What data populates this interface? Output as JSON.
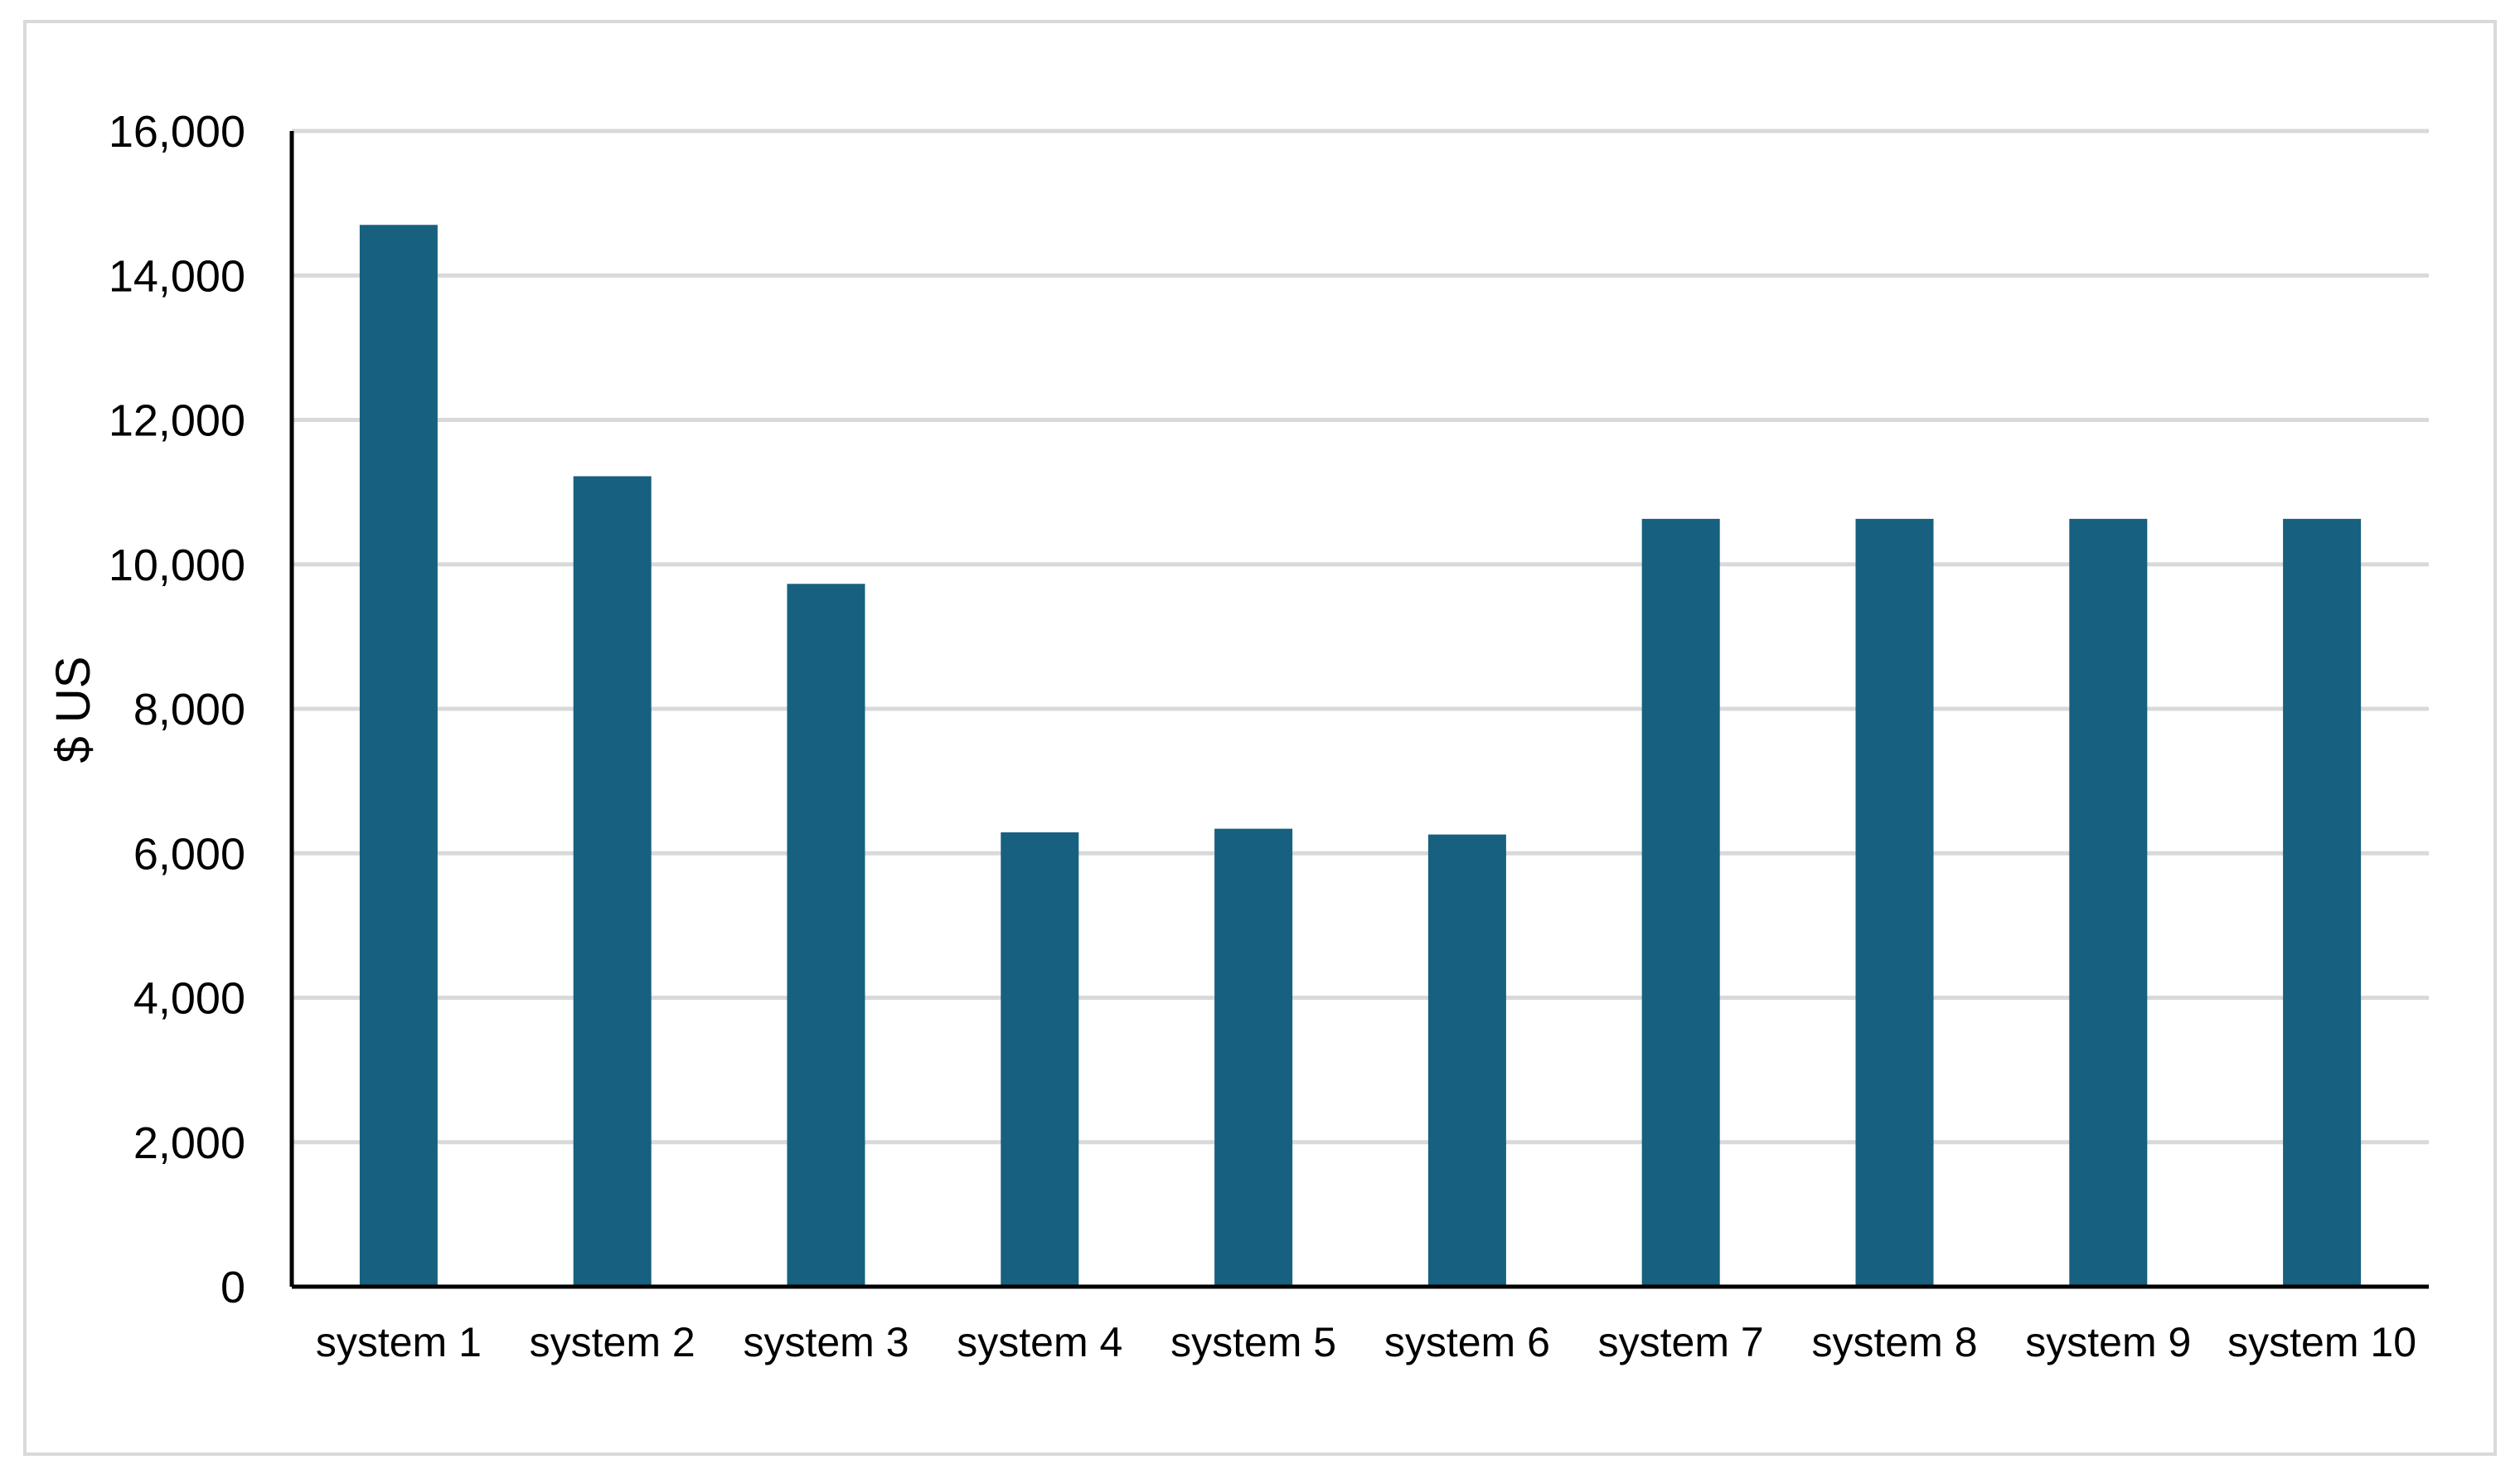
{
  "chart_data": {
    "type": "bar",
    "title": "",
    "xlabel": "",
    "ylabel": "$ US",
    "categories": [
      "system 1",
      "system 2",
      "system 3",
      "system 4",
      "system 5",
      "system 6",
      "system 7",
      "system 8",
      "system 9",
      "system 10"
    ],
    "values": [
      14700,
      11220,
      9730,
      6290,
      6340,
      6260,
      10630,
      10630,
      10630,
      10630
    ],
    "ylim": [
      0,
      16000
    ],
    "yticks": [
      0,
      2000,
      4000,
      6000,
      8000,
      10000,
      12000,
      14000,
      16000
    ],
    "ytick_labels": [
      "0",
      "2,000",
      "4,000",
      "6,000",
      "8,000",
      "10,000",
      "12,000",
      "14,000",
      "16,000"
    ],
    "grid": true,
    "legend": "none",
    "colors": {
      "bar": "#17607f",
      "grid": "#d9d9d9",
      "axis": "#000000",
      "frame": "#d9d9d9"
    }
  }
}
